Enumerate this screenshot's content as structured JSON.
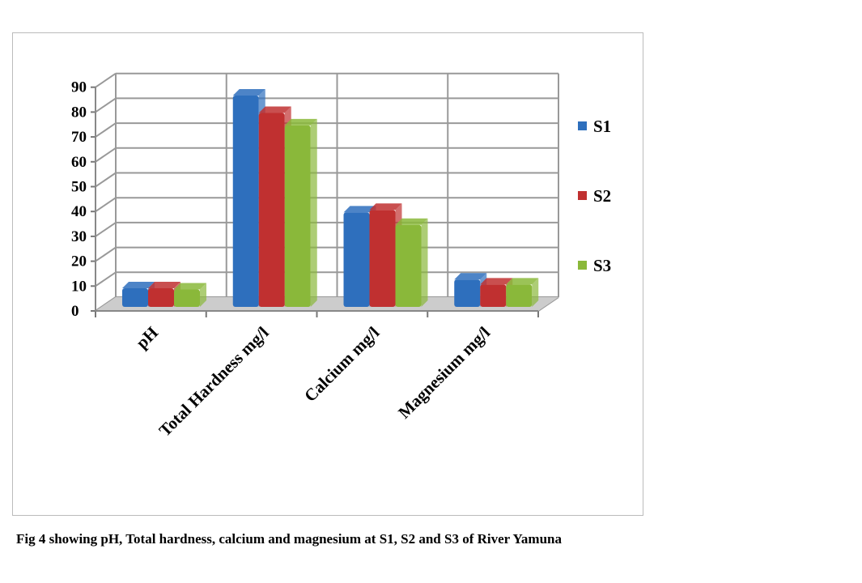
{
  "chart_data": {
    "type": "bar",
    "title": "",
    "categories": [
      "pH",
      "Total Hardness mg/l",
      "Calcium mg/l",
      "Magnesium mg/l"
    ],
    "series": [
      {
        "name": "S1",
        "color": "#2e6fbd",
        "values": [
          7.5,
          85,
          38,
          11
        ]
      },
      {
        "name": "S2",
        "color": "#c03030",
        "values": [
          7.5,
          78,
          39,
          9
        ]
      },
      {
        "name": "S3",
        "color": "#8ab83a",
        "values": [
          7,
          73,
          33,
          9
        ]
      }
    ],
    "yticks": [
      0,
      10,
      20,
      30,
      40,
      50,
      60,
      70,
      80,
      90
    ],
    "ylim": [
      0,
      90
    ],
    "xlabel": "",
    "ylabel": "",
    "grid": true,
    "legend": "right"
  },
  "caption": "Fig 4 showing pH, Total hardness, calcium and magnesium at S1, S2 and S3 of River Yamuna"
}
